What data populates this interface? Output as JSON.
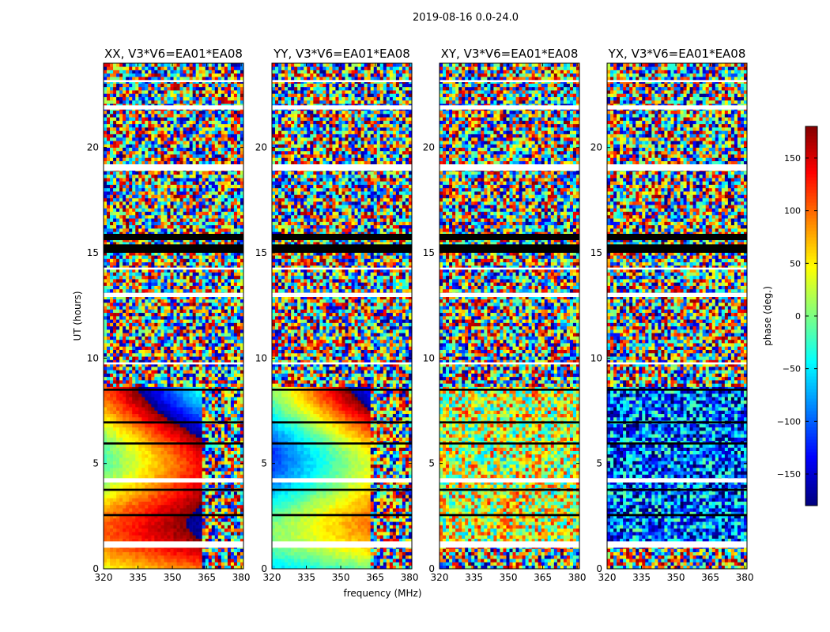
{
  "figure": {
    "title": "2019-08-16 0.0-24.0",
    "xlabel": "frequency (MHz)",
    "ylabel": "UT (hours)",
    "colorbar_label": "phase (deg.)",
    "colormap": "jet",
    "colorbar_ticks": [
      "150",
      "100",
      "50",
      "0",
      "−50",
      "−100",
      "−150"
    ]
  },
  "chart_data": [
    {
      "type": "heatmap",
      "title": "XX, V3*V6=EA01*EA08",
      "xlabel": "frequency (MHz)",
      "ylabel": "UT (hours)",
      "xlim": [
        320,
        381
      ],
      "ylim": [
        0,
        24
      ],
      "xticks": [
        320,
        335,
        350,
        365,
        380
      ],
      "yticks": [
        0,
        5,
        10,
        15,
        20
      ],
      "zlim": [
        -180,
        180
      ],
      "colorbar_label": "phase (deg.)",
      "pattern": "coherent"
    },
    {
      "type": "heatmap",
      "title": "YY, V3*V6=EA01*EA08",
      "xlabel": "frequency (MHz)",
      "ylabel": "UT (hours)",
      "xlim": [
        320,
        381
      ],
      "ylim": [
        0,
        24
      ],
      "xticks": [
        320,
        335,
        350,
        365,
        380
      ],
      "yticks": [
        0,
        5,
        10,
        15,
        20
      ],
      "zlim": [
        -180,
        180
      ],
      "colorbar_label": "phase (deg.)",
      "pattern": "coherent"
    },
    {
      "type": "heatmap",
      "title": "XY, V3*V6=EA01*EA08",
      "xlabel": "frequency (MHz)",
      "ylabel": "UT (hours)",
      "xlim": [
        320,
        381
      ],
      "ylim": [
        0,
        24
      ],
      "xticks": [
        320,
        335,
        350,
        365,
        380
      ],
      "yticks": [
        0,
        5,
        10,
        15,
        20
      ],
      "zlim": [
        -180,
        180
      ],
      "colorbar_label": "phase (deg.)",
      "pattern": "noisy"
    },
    {
      "type": "heatmap",
      "title": "YX, V3*V6=EA01*EA08",
      "xlabel": "frequency (MHz)",
      "ylabel": "UT (hours)",
      "xlim": [
        320,
        381
      ],
      "ylim": [
        0,
        24
      ],
      "xticks": [
        320,
        335,
        350,
        365,
        380
      ],
      "yticks": [
        0,
        5,
        10,
        15,
        20
      ],
      "zlim": [
        -180,
        180
      ],
      "colorbar_label": "phase (deg.)",
      "pattern": "noisy"
    }
  ],
  "colorbar": {
    "range": [
      -180,
      180
    ],
    "ticks": [
      150,
      100,
      50,
      0,
      -50,
      -100,
      -150
    ]
  }
}
